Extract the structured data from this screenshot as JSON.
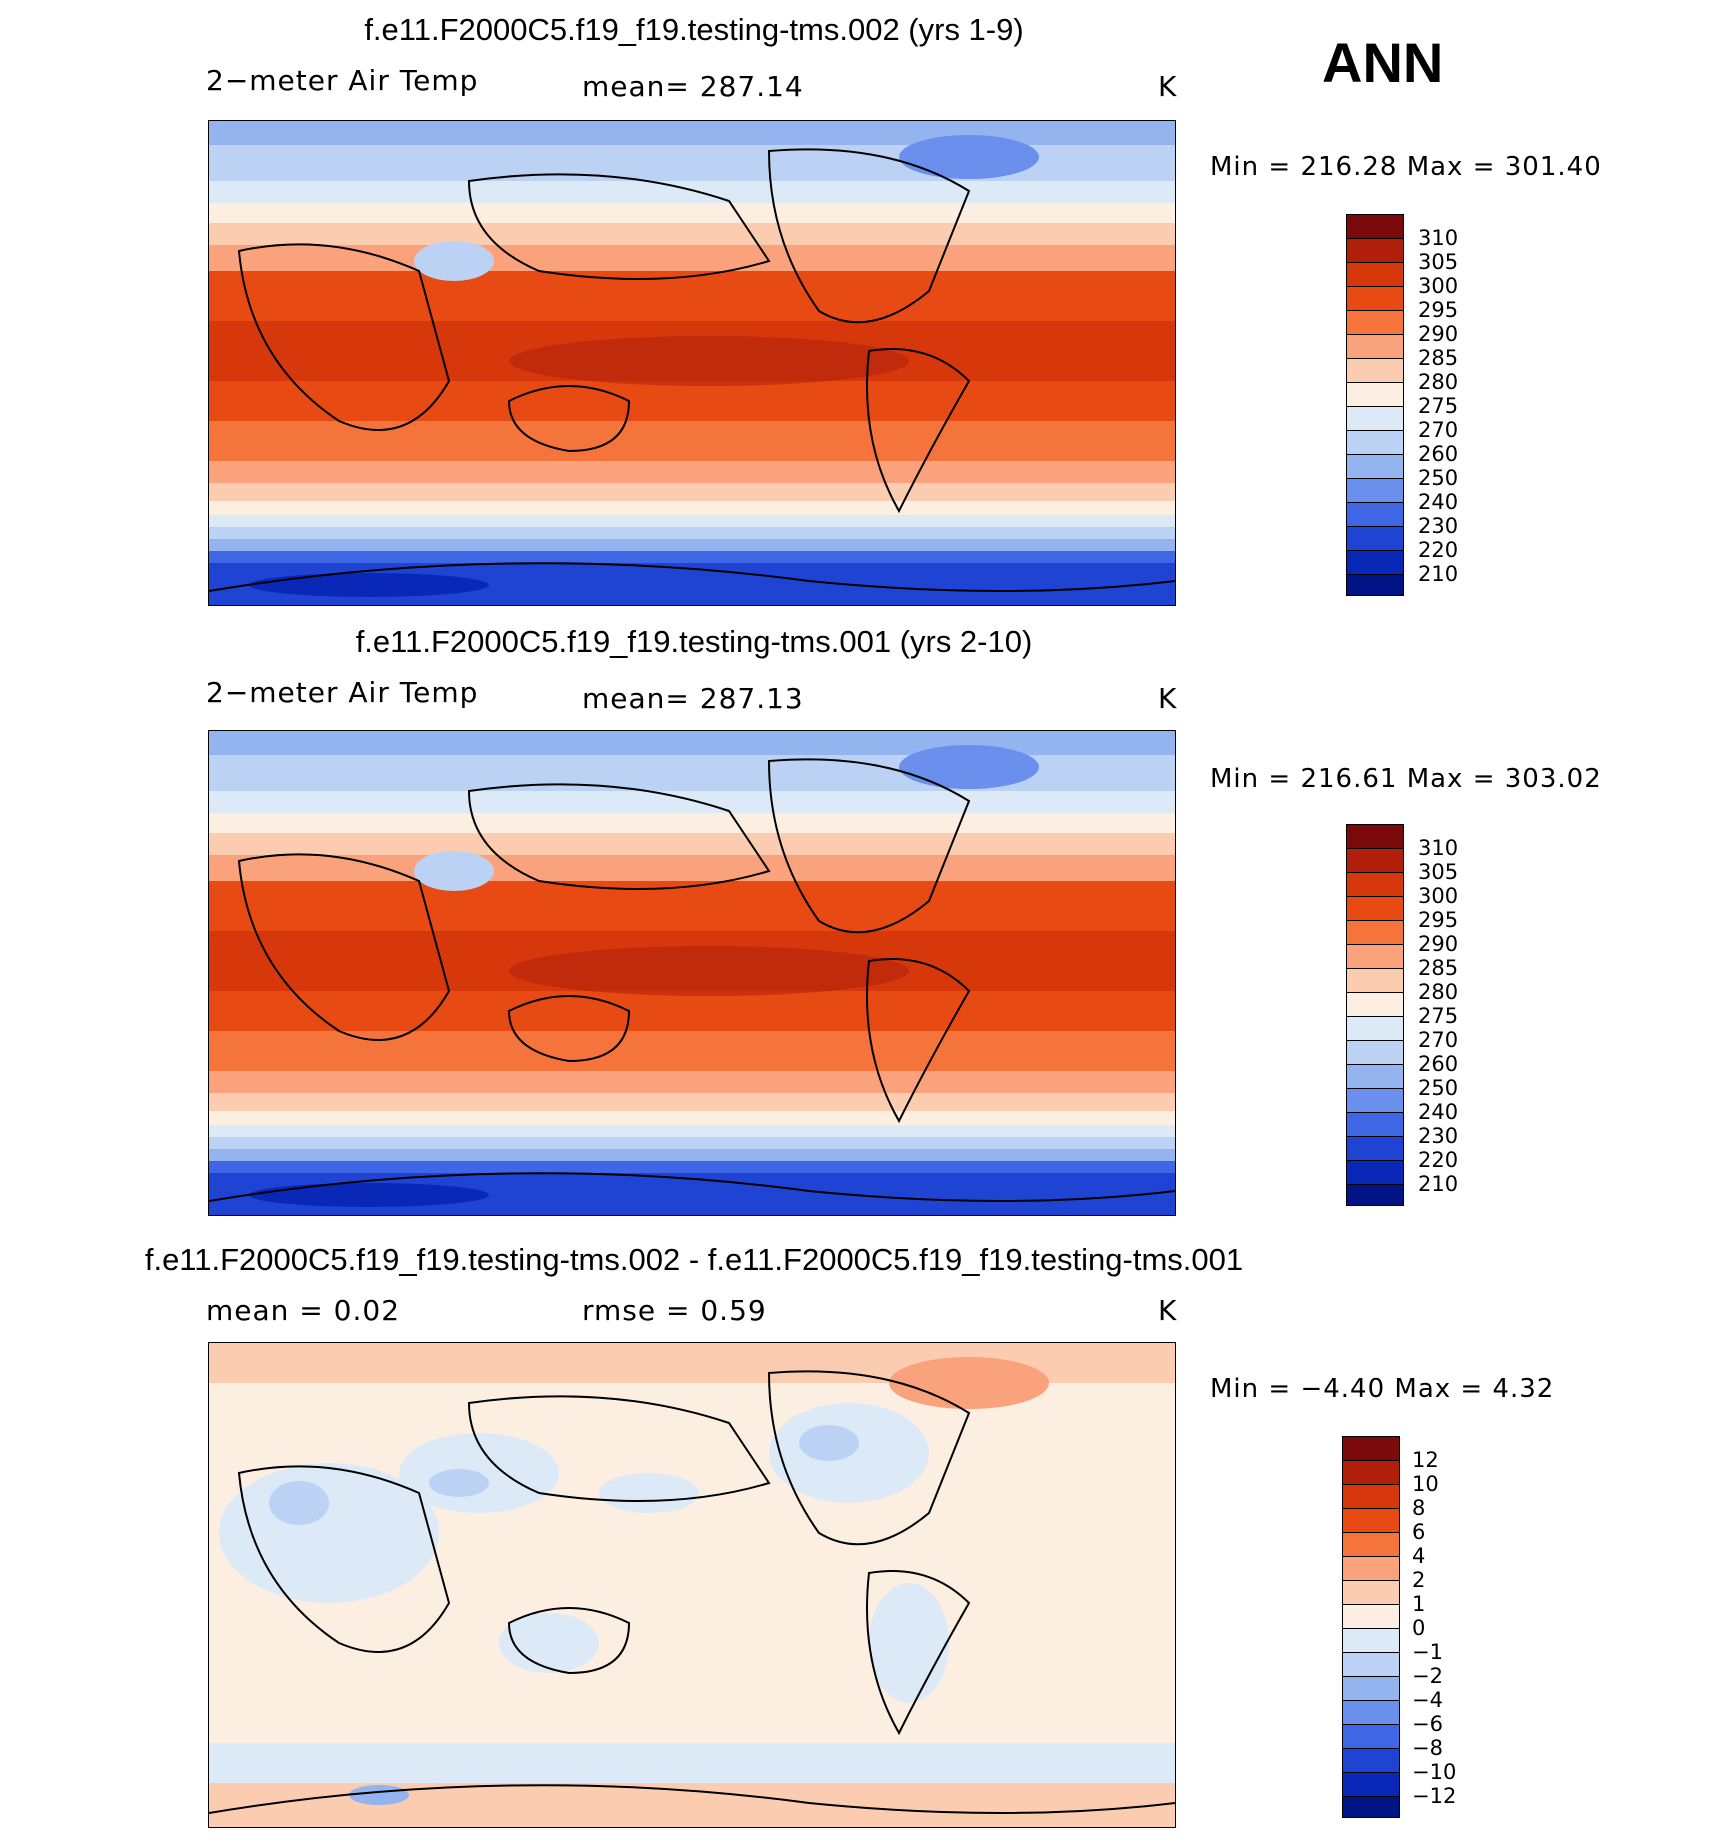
{
  "season": "ANN",
  "panels": [
    {
      "title": "f.e11.F2000C5.f19_f19.testing-tms.002 (yrs 1-9)",
      "left_label": "2−meter Air Temp",
      "center_label": "mean=  287.14",
      "units": "K",
      "minmax": "Min  =  216.28  Max  =  301.40",
      "colorbar_labels": [
        "310",
        "305",
        "300",
        "295",
        "290",
        "285",
        "280",
        "275",
        "270",
        "260",
        "250",
        "240",
        "230",
        "220",
        "210"
      ]
    },
    {
      "title": "f.e11.F2000C5.f19_f19.testing-tms.001 (yrs 2-10)",
      "left_label": "2−meter Air Temp",
      "center_label": "mean=  287.13",
      "units": "K",
      "minmax": "Min  =  216.61  Max  =  303.02",
      "colorbar_labels": [
        "310",
        "305",
        "300",
        "295",
        "290",
        "285",
        "280",
        "275",
        "270",
        "260",
        "250",
        "240",
        "230",
        "220",
        "210"
      ]
    },
    {
      "title": "f.e11.F2000C5.f19_f19.testing-tms.002 - f.e11.F2000C5.f19_f19.testing-tms.001",
      "left_label": "mean  =     0.02",
      "center_label": "rmse  =     0.59",
      "units": "K",
      "minmax": "Min  =   −4.40  Max  =     4.32",
      "colorbar_labels": [
        "12",
        "10",
        "8",
        "6",
        "4",
        "2",
        "1",
        "0",
        "−1",
        "−2",
        "−4",
        "−6",
        "−8",
        "−10",
        "−12"
      ]
    }
  ],
  "colors": {
    "scale": [
      "#7b0a0a",
      "#b01f0a",
      "#d6380c",
      "#e84a14",
      "#f4743c",
      "#f9a27c",
      "#fcccb0",
      "#fdeee2",
      "#dceaf8",
      "#bcd2f4",
      "#94b4f0",
      "#6a8fec",
      "#3f66e4",
      "#1f44d4",
      "#0a28b8",
      "#001485"
    ]
  }
}
